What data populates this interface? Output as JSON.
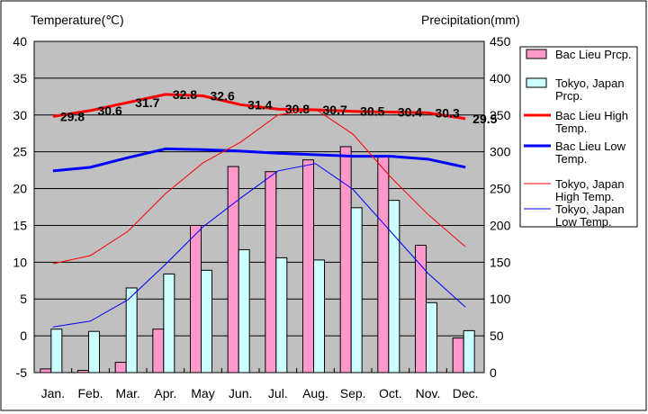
{
  "chart_data": {
    "type": "bar",
    "left_axis_label": "Temperature(℃)",
    "right_axis_label": "Precipitation(mm)",
    "categories": [
      "Jan.",
      "Feb.",
      "Mar.",
      "Apr.",
      "May",
      "Jun.",
      "Jul.",
      "Aug.",
      "Sep.",
      "Oct.",
      "Nov.",
      "Dec."
    ],
    "left_ylim": [
      -5,
      40
    ],
    "left_ticks": [
      -5,
      0,
      5,
      10,
      15,
      20,
      25,
      30,
      35,
      40
    ],
    "right_ylim": [
      0,
      450
    ],
    "right_ticks": [
      0,
      50,
      100,
      150,
      200,
      250,
      300,
      350,
      400,
      450
    ],
    "grid": true,
    "legend_position": "right",
    "series": [
      {
        "name": "Bac Lieu Prcp.",
        "type": "bar",
        "axis": "right",
        "color": "#ff99cc",
        "values": [
          5,
          3,
          14,
          59,
          200,
          280,
          273,
          289,
          307,
          294,
          173,
          47
        ]
      },
      {
        "name": "Tokyo, Japan Prcp.",
        "type": "bar",
        "axis": "right",
        "color": "#ccffff",
        "values": [
          59,
          56,
          115,
          134,
          139,
          167,
          156,
          153,
          224,
          234,
          95,
          57
        ]
      },
      {
        "name": "Bac Lieu High Temp.",
        "type": "line",
        "axis": "left",
        "color": "#ff0000",
        "width": 3,
        "labels": true,
        "values": [
          29.8,
          30.6,
          31.7,
          32.8,
          32.6,
          31.4,
          30.8,
          30.7,
          30.5,
          30.4,
          30.3,
          29.5
        ]
      },
      {
        "name": "Bac Lieu Low Temp.",
        "type": "line",
        "axis": "left",
        "color": "#0000ff",
        "width": 3,
        "values": [
          22.4,
          22.9,
          24.2,
          25.4,
          25.3,
          25.1,
          24.8,
          24.6,
          24.4,
          24.4,
          24.0,
          22.9
        ]
      },
      {
        "name": "Tokyo, Japan High Temp.",
        "type": "line",
        "axis": "left",
        "color": "#ff0000",
        "width": 1,
        "values": [
          9.8,
          10.9,
          14.2,
          19.3,
          23.5,
          26.3,
          30.0,
          30.8,
          27.4,
          21.6,
          16.5,
          12.1
        ]
      },
      {
        "name": "Tokyo, Japan Low Temp.",
        "type": "line",
        "axis": "left",
        "color": "#0000ff",
        "width": 1,
        "values": [
          1.2,
          2.0,
          4.9,
          9.7,
          14.8,
          18.7,
          22.4,
          23.4,
          19.9,
          14.2,
          8.5,
          3.9
        ]
      }
    ],
    "legend_lines": [
      [
        "Bac Lieu Prcp."
      ],
      [
        "Tokyo, Japan",
        "Prcp."
      ],
      [
        "Bac Lieu High",
        "Temp."
      ],
      [
        "Bac Lieu Low",
        "Temp."
      ],
      [
        "Tokyo, Japan",
        "High Temp."
      ],
      [
        "Tokyo, Japan",
        "Low Temp."
      ]
    ]
  }
}
